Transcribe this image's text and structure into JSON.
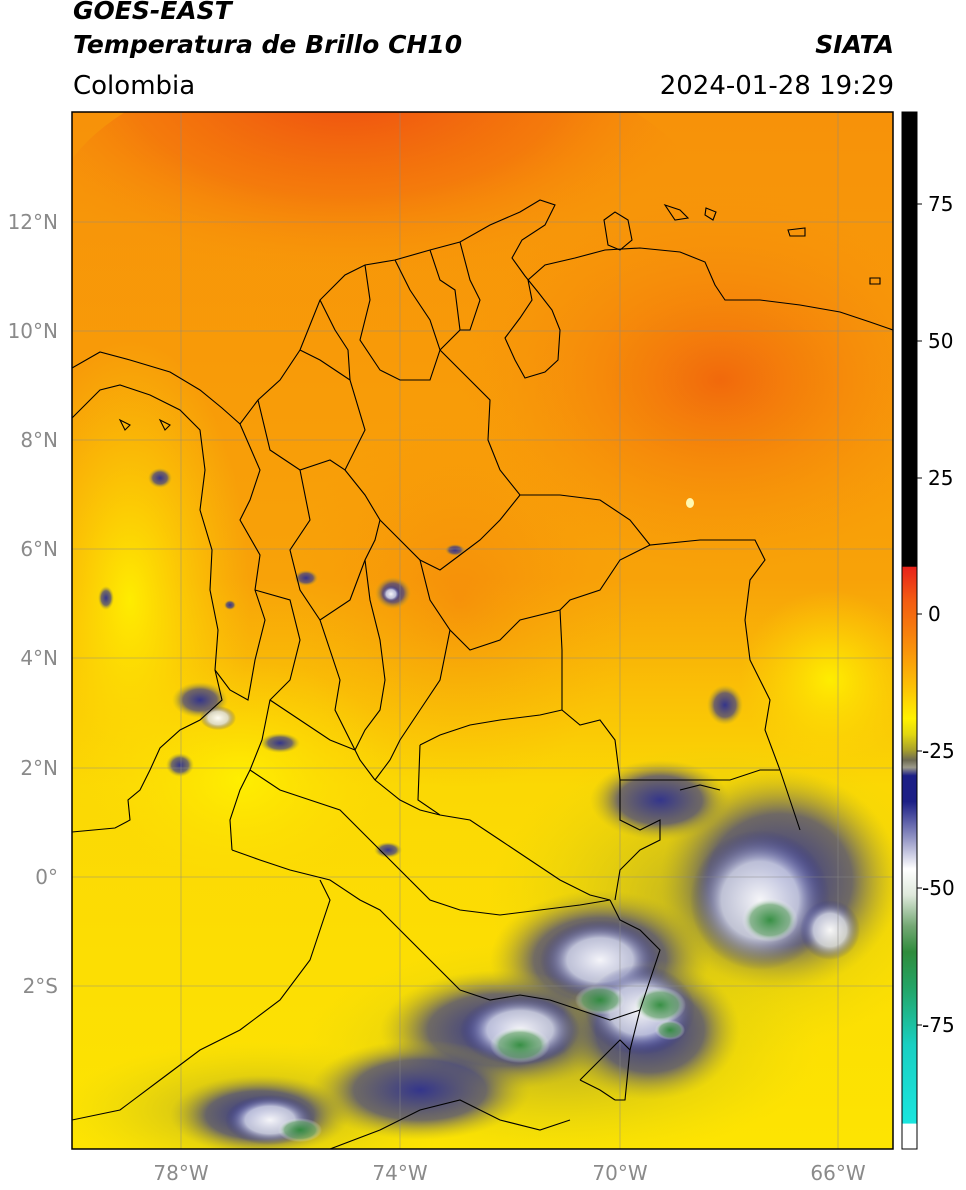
{
  "header": {
    "title_line1": "GOES-EAST",
    "title_line2": "Temperatura de Brillo CH10",
    "org": "SIATA",
    "region": "Colombia",
    "datetime": "2024-01-28 19:29"
  },
  "map": {
    "lon_ticks": [
      "78°W",
      "74°W",
      "70°W",
      "66°W"
    ],
    "lat_ticks": [
      "12°N",
      "10°N",
      "8°N",
      "6°N",
      "4°N",
      "2°N",
      "0°",
      "2°S"
    ]
  },
  "colorbar": {
    "ticks": [
      "75",
      "50",
      "25",
      "0",
      "-25",
      "-50",
      "-75"
    ],
    "colors": {
      "black": "#000000",
      "red": "#e8221a",
      "orange": "#f9940a",
      "yellow": "#fff200",
      "olive": "#a9a22a",
      "navy": "#1c1f86",
      "white": "#ffffff",
      "green": "#2f8c3c",
      "cyan": "#19d6d0"
    }
  }
}
